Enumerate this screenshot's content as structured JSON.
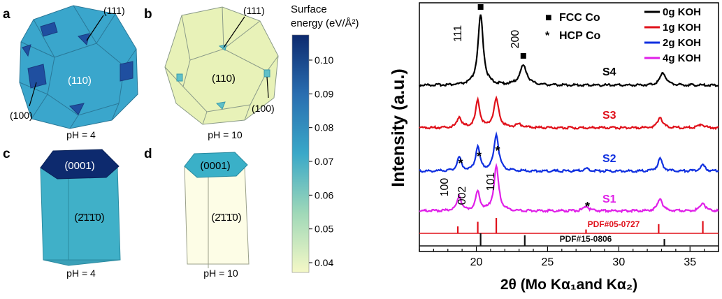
{
  "panels": {
    "a": {
      "letter": "a",
      "facet_main": "(110)",
      "facet_111": "(111)",
      "facet_100": "(100)",
      "ph": "pH = 4"
    },
    "b": {
      "letter": "b",
      "facet_main": "(110)",
      "facet_111": "(111)",
      "facet_100": "(100)",
      "ph": "pH = 10"
    },
    "c": {
      "letter": "c",
      "facet_top": "(0001)",
      "facet_side": "(2̄1̄1̄0)",
      "ph": "pH = 4"
    },
    "d": {
      "letter": "d",
      "facet_top": "(0001)",
      "facet_side": "(2̄1̄1̄0)",
      "ph": "pH = 10"
    }
  },
  "colorbar": {
    "title_line1": "Surface",
    "title_line2": "energy (eV/Å²)",
    "ticks": [
      "0.10",
      "0.09",
      "0.08",
      "0.07",
      "0.06",
      "0.05",
      "0.04"
    ],
    "color_high": "#0d2a6e",
    "color_low": "#f4f8c6"
  },
  "colors": {
    "a_face": "#3aa6cc",
    "a_100": "#1f4fa0",
    "b_face": "#e8f2b8",
    "b_small": "#5fc0c8",
    "c_top": "#0d2a6e",
    "c_side": "#40b0c8",
    "d_top": "#3ab0c8",
    "d_side": "#fdfde6"
  },
  "chart_data": {
    "type": "line",
    "ylabel": "Intensity (a.u.)",
    "xlabel": "2θ (Mo Kα₁and Kα₂)",
    "xlim": [
      16,
      37
    ],
    "x_ticks": [
      20,
      25,
      30,
      35
    ],
    "legend_markers": [
      {
        "symbol": "■",
        "label": "FCC Co"
      },
      {
        "symbol": "*",
        "label": "HCP Co"
      }
    ],
    "series": [
      {
        "name": "0g KOH",
        "label": "S4",
        "color": "#000000",
        "baseline": 0,
        "peaks": [
          {
            "x": 20.3,
            "h": 1.0,
            "w": 0.22
          },
          {
            "x": 23.3,
            "h": 0.28,
            "w": 0.3
          },
          {
            "x": 33.1,
            "h": 0.18,
            "w": 0.25
          }
        ]
      },
      {
        "name": "1g KOH",
        "label": "S3",
        "color": "#e0101a",
        "baseline": 1,
        "peaks": [
          {
            "x": 18.8,
            "h": 0.22,
            "w": 0.18
          },
          {
            "x": 20.1,
            "h": 0.55,
            "w": 0.18
          },
          {
            "x": 21.4,
            "h": 0.58,
            "w": 0.22
          },
          {
            "x": 23.0,
            "h": 0.06,
            "w": 0.3
          },
          {
            "x": 32.9,
            "h": 0.22,
            "w": 0.2
          },
          {
            "x": 35.8,
            "h": 0.08,
            "w": 0.2
          }
        ]
      },
      {
        "name": "2g KOH",
        "label": "S2",
        "color": "#1030e0",
        "baseline": 2,
        "peaks": [
          {
            "x": 18.8,
            "h": 0.28,
            "w": 0.18
          },
          {
            "x": 20.1,
            "h": 0.5,
            "w": 0.18
          },
          {
            "x": 21.4,
            "h": 0.75,
            "w": 0.2
          },
          {
            "x": 27.7,
            "h": 0.05,
            "w": 0.25
          },
          {
            "x": 32.9,
            "h": 0.25,
            "w": 0.2
          },
          {
            "x": 35.9,
            "h": 0.12,
            "w": 0.2
          }
        ]
      },
      {
        "name": "4g KOH",
        "label": "S1",
        "color": "#e020e8",
        "baseline": 3,
        "peaks": [
          {
            "x": 18.8,
            "h": 0.35,
            "w": 0.18
          },
          {
            "x": 20.1,
            "h": 0.45,
            "w": 0.18
          },
          {
            "x": 21.4,
            "h": 1.05,
            "w": 0.2
          },
          {
            "x": 27.7,
            "h": 0.12,
            "w": 0.2
          },
          {
            "x": 32.9,
            "h": 0.3,
            "w": 0.2
          },
          {
            "x": 35.9,
            "h": 0.2,
            "w": 0.2
          }
        ]
      }
    ],
    "peak_labels": [
      {
        "text": "111",
        "x": 19.2
      },
      {
        "text": "200",
        "x": 23.7
      },
      {
        "text": "100",
        "x": 18.0
      },
      {
        "text": "002",
        "x": 19.5
      },
      {
        "text": "101",
        "x": 22.0
      }
    ],
    "reference_patterns": [
      {
        "name": "PDF#05-0727",
        "color": "#e0101a",
        "lines": [
          {
            "x": 18.7,
            "h": 0.45
          },
          {
            "x": 20.1,
            "h": 0.75
          },
          {
            "x": 21.4,
            "h": 1.0
          },
          {
            "x": 27.7,
            "h": 0.25
          },
          {
            "x": 32.8,
            "h": 0.6
          },
          {
            "x": 35.9,
            "h": 0.8
          }
        ]
      },
      {
        "name": "PDF#15-0806",
        "color": "#111111",
        "lines": [
          {
            "x": 20.3,
            "h": 1.0
          },
          {
            "x": 23.4,
            "h": 0.85
          },
          {
            "x": 33.2,
            "h": 0.55
          }
        ]
      }
    ]
  }
}
